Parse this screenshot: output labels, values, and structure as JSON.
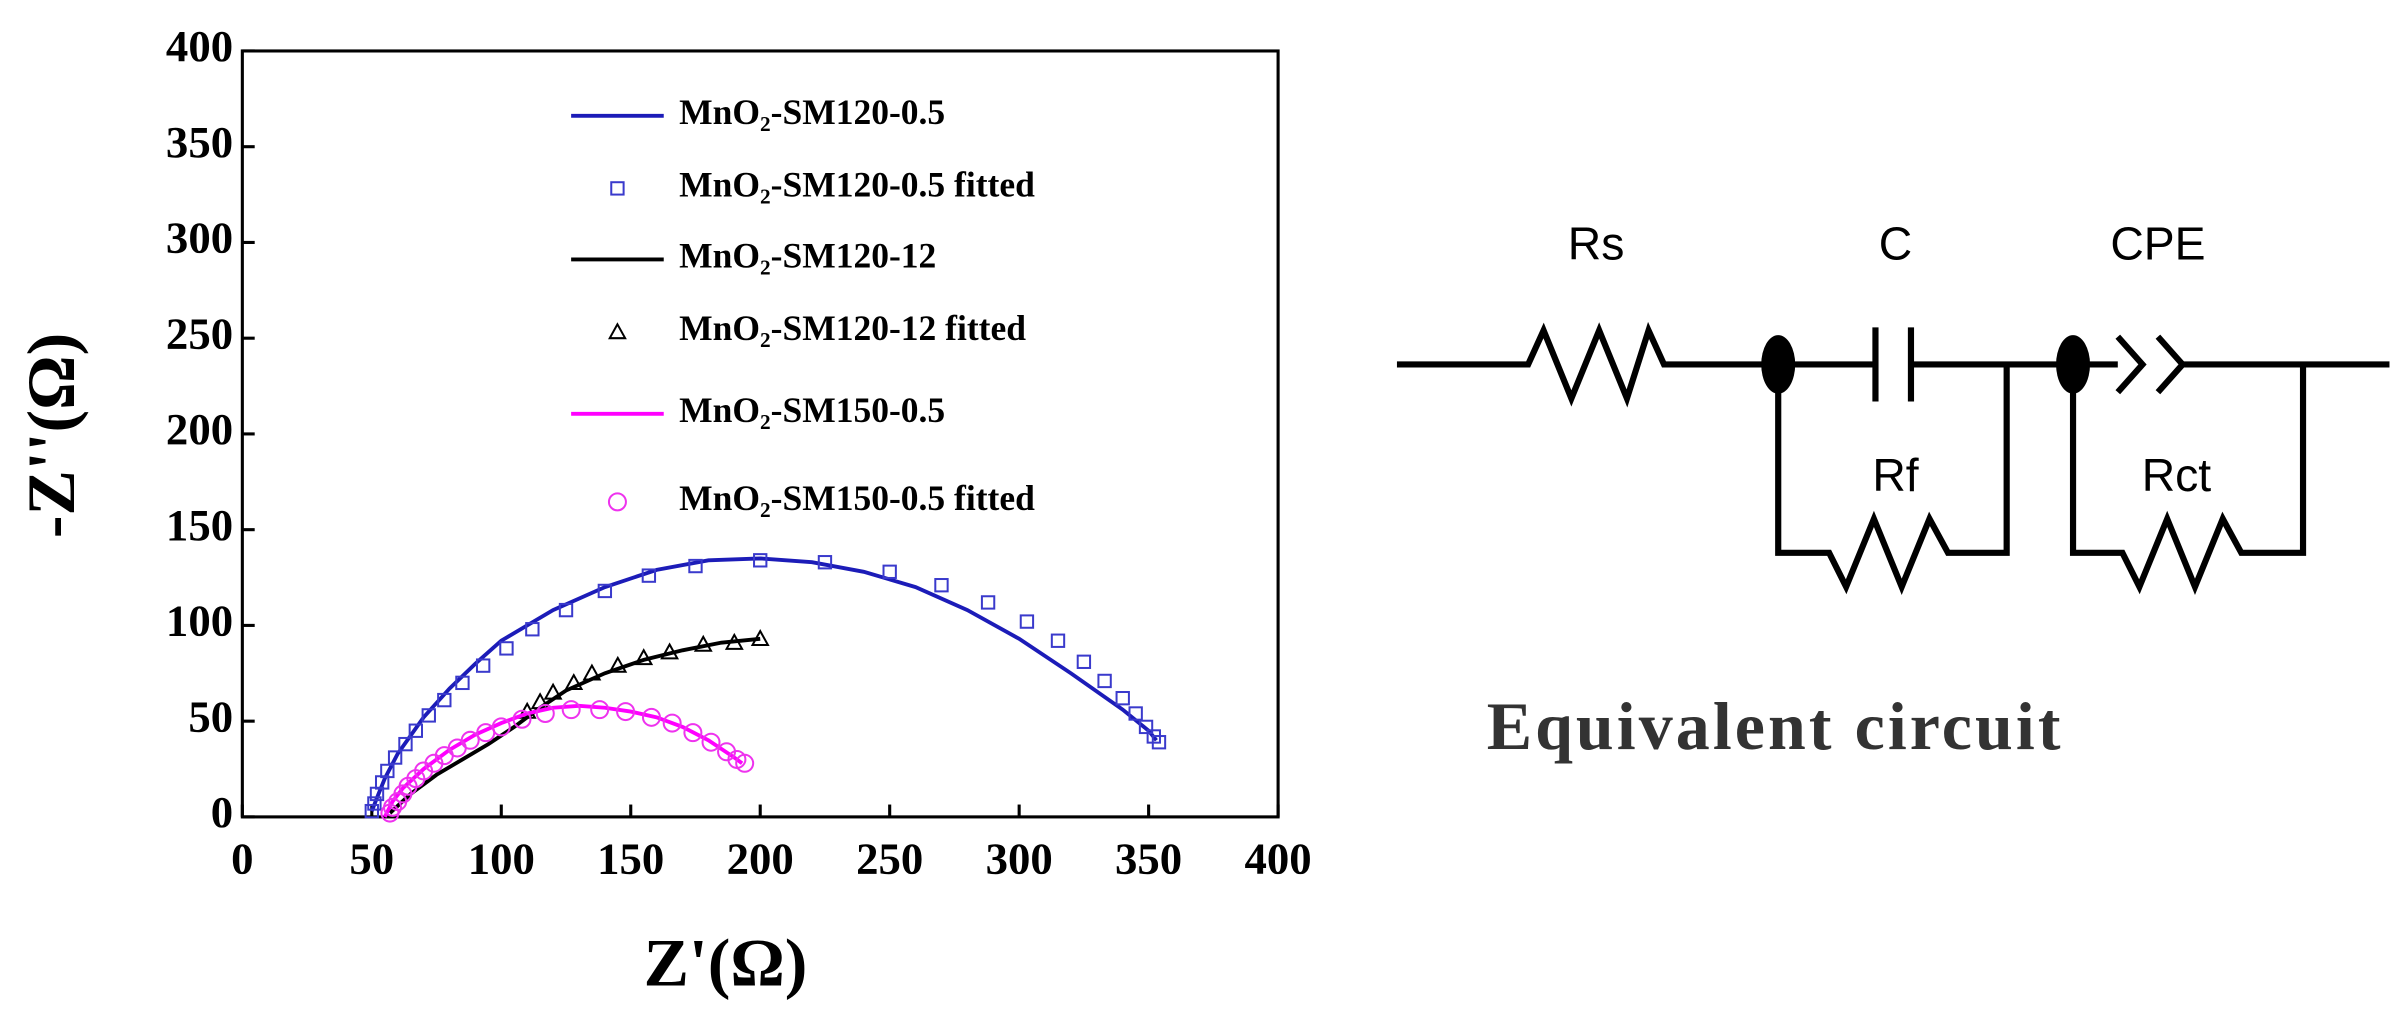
{
  "chart_data": {
    "type": "scatter",
    "xlabel": "Z'(Ω)",
    "ylabel": "-Z''(Ω)",
    "xlim": [
      0,
      400
    ],
    "ylim": [
      0,
      400
    ],
    "xticks": [
      0,
      50,
      100,
      150,
      200,
      250,
      300,
      350,
      400
    ],
    "yticks": [
      0,
      50,
      100,
      150,
      200,
      250,
      300,
      350,
      400
    ],
    "grid": false,
    "series": [
      {
        "name": "MnO₂-SM120-0.5",
        "color": "#1c1cb8",
        "style": "line",
        "x": [
          50,
          52,
          55,
          60,
          70,
          80,
          90,
          100,
          120,
          140,
          160,
          180,
          200,
          220,
          240,
          260,
          280,
          300,
          320,
          340,
          350,
          353
        ],
        "values": [
          3,
          10,
          20,
          33,
          52,
          67,
          80,
          92,
          108,
          120,
          129,
          134,
          135,
          133,
          128,
          120,
          108,
          93,
          75,
          56,
          45,
          40
        ]
      },
      {
        "name": "MnO₂-SM120-0.5 fitted",
        "color": "#3a3acc",
        "style": "square",
        "x": [
          50,
          51,
          52,
          54,
          56,
          59,
          63,
          67,
          72,
          78,
          85,
          93,
          102,
          112,
          125,
          140,
          157,
          175,
          200,
          225,
          250,
          270,
          288,
          303,
          315,
          325,
          333,
          340,
          345,
          349,
          352,
          354
        ],
        "values": [
          3,
          7,
          12,
          18,
          24,
          31,
          38,
          45,
          53,
          61,
          70,
          79,
          88,
          98,
          108,
          118,
          126,
          131,
          134,
          133,
          128,
          121,
          112,
          102,
          92,
          81,
          71,
          62,
          54,
          47,
          42,
          39
        ]
      },
      {
        "name": "MnO₂-SM120-12",
        "color": "#000000",
        "style": "line",
        "x": [
          57,
          65,
          75,
          85,
          95,
          105,
          115,
          125,
          140,
          155,
          170,
          185,
          200
        ],
        "values": [
          2,
          12,
          22,
          30,
          38,
          47,
          57,
          66,
          75,
          82,
          87,
          91,
          93
        ]
      },
      {
        "name": "MnO₂-SM120-12 fitted",
        "color": "#000000",
        "style": "triangle",
        "x": [
          110,
          115,
          120,
          128,
          135,
          145,
          155,
          165,
          178,
          190,
          200
        ],
        "values": [
          55,
          60,
          65,
          70,
          75,
          79,
          83,
          86,
          90,
          91,
          93
        ]
      },
      {
        "name": "MnO₂-SM150-0.5",
        "color": "#ff00ff",
        "style": "line",
        "x": [
          55,
          58,
          62,
          70,
          80,
          90,
          100,
          110,
          120,
          130,
          140,
          150,
          160,
          170,
          180,
          190,
          193
        ],
        "values": [
          0,
          8,
          15,
          25,
          35,
          43,
          49,
          54,
          57,
          58,
          57,
          55,
          52,
          47,
          40,
          31,
          28
        ]
      },
      {
        "name": "MnO₂-SM150-0.5 fitted",
        "color": "#ee33ee",
        "style": "circle",
        "x": [
          57,
          58,
          60,
          62,
          64,
          67,
          70,
          74,
          78,
          83,
          88,
          94,
          100,
          108,
          117,
          127,
          138,
          148,
          158,
          166,
          174,
          181,
          187,
          191,
          194
        ],
        "values": [
          2,
          5,
          8,
          12,
          16,
          20,
          24,
          28,
          32,
          36,
          40,
          44,
          47,
          51,
          54,
          56,
          56,
          55,
          52,
          49,
          44,
          39,
          34,
          30,
          28
        ]
      }
    ]
  },
  "circuit": {
    "components": [
      "Rs",
      "C",
      "CPE",
      "Rf",
      "Rct"
    ],
    "caption": "Equivalent circuit"
  }
}
